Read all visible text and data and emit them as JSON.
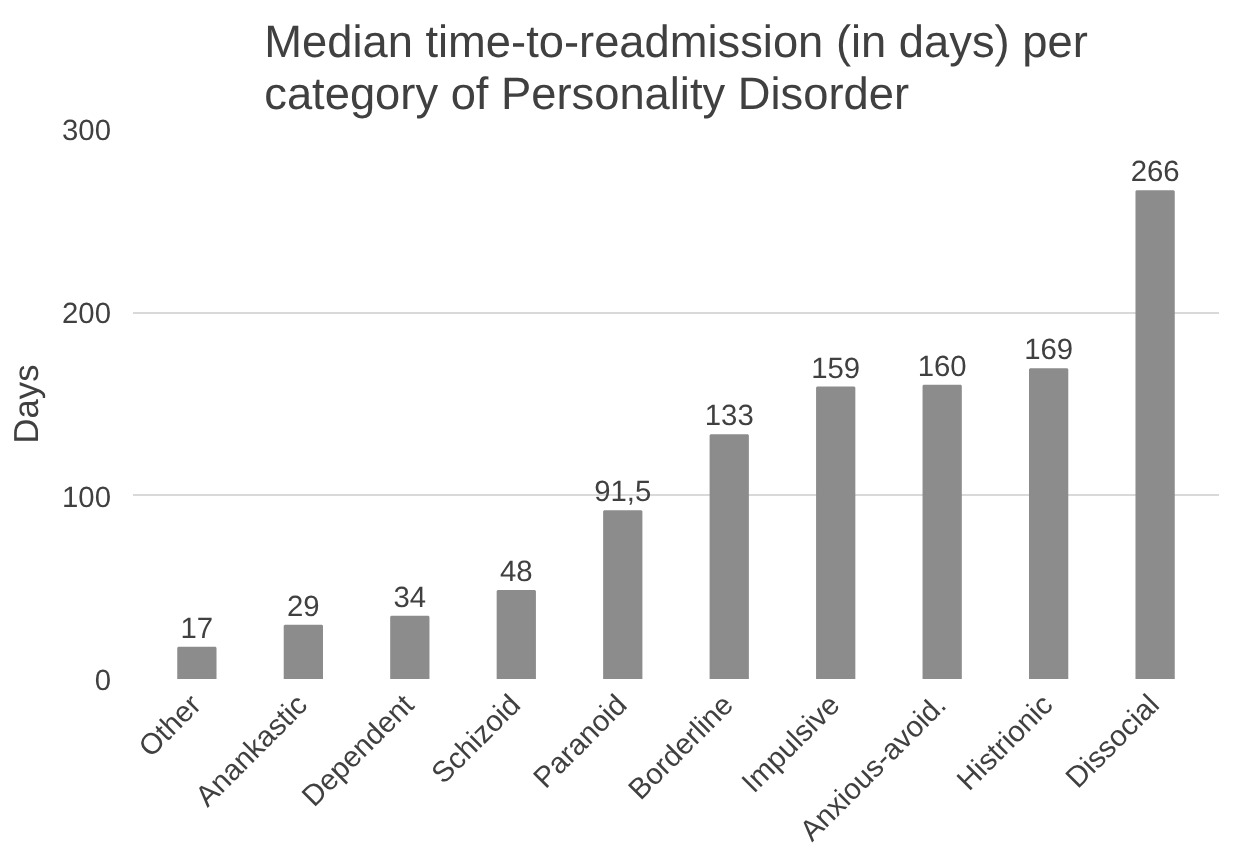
{
  "chart_data": {
    "type": "bar",
    "title": "Median time-to-readmission (in days) per\ncategory of Personality Disorder",
    "ylabel": "Days",
    "categories": [
      "Other",
      "Anankastic",
      "Dependent",
      "Schizoid",
      "Paranoid",
      "Borderline",
      "Impulsive",
      "Anxious-avoid.",
      "Histrionic",
      "Dissocial"
    ],
    "values": [
      17,
      29,
      34,
      48,
      91.5,
      133,
      159,
      160,
      169,
      266
    ],
    "value_labels": [
      "17",
      "29",
      "34",
      "48",
      "91,5",
      "133",
      "159",
      "160",
      "169",
      "266"
    ],
    "color": "#8c8c8c",
    "ylim": [
      0,
      300
    ],
    "yticks": [
      0,
      100,
      200,
      300
    ],
    "grid": "y"
  }
}
